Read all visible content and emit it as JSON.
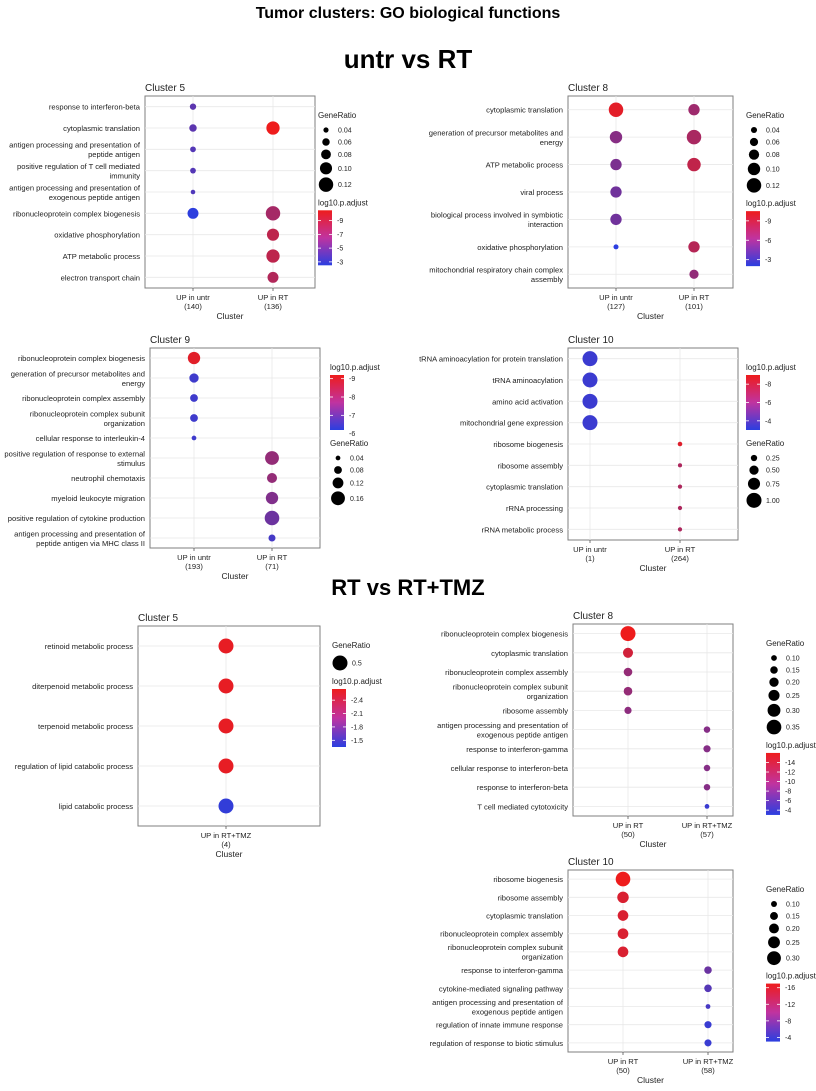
{
  "page_title": "Tumor clusters: GO biological functions",
  "sections": [
    {
      "title": "untr vs RT"
    },
    {
      "title": "RT vs RT+TMZ"
    }
  ],
  "chart_data": [
    {
      "type": "scatter",
      "title": "Cluster 5",
      "xlabel": "Cluster",
      "categories": [
        {
          "name": "UP in untr",
          "count": "(140)"
        },
        {
          "name": "UP in RT",
          "count": "(136)"
        }
      ],
      "terms": [
        "response to interferon-beta",
        "cytoplasmic translation",
        "antigen processing and presentation of peptide antigen",
        "positive regulation of T cell mediated immunity",
        "antigen processing and presentation of exogenous peptide antigen",
        "ribonucleoprotein complex biogenesis",
        "oxidative phosphorylation",
        "ATP metabolic process",
        "electron transport chain"
      ],
      "points": [
        {
          "term": 0,
          "cat": 0,
          "gene_ratio": 0.05,
          "log10_p_adjust": -4.5
        },
        {
          "term": 1,
          "cat": 0,
          "gene_ratio": 0.06,
          "log10_p_adjust": -4.5
        },
        {
          "term": 2,
          "cat": 0,
          "gene_ratio": 0.045,
          "log10_p_adjust": -4.2
        },
        {
          "term": 3,
          "cat": 0,
          "gene_ratio": 0.045,
          "log10_p_adjust": -4.2
        },
        {
          "term": 4,
          "cat": 0,
          "gene_ratio": 0.035,
          "log10_p_adjust": -4.0
        },
        {
          "term": 5,
          "cat": 0,
          "gene_ratio": 0.09,
          "log10_p_adjust": -2.6
        },
        {
          "term": 1,
          "cat": 1,
          "gene_ratio": 0.11,
          "log10_p_adjust": -10.5
        },
        {
          "term": 5,
          "cat": 1,
          "gene_ratio": 0.12,
          "log10_p_adjust": -7.5
        },
        {
          "term": 6,
          "cat": 1,
          "gene_ratio": 0.1,
          "log10_p_adjust": -8.5
        },
        {
          "term": 7,
          "cat": 1,
          "gene_ratio": 0.11,
          "log10_p_adjust": -8.5
        },
        {
          "term": 8,
          "cat": 1,
          "gene_ratio": 0.09,
          "log10_p_adjust": -8.0
        }
      ],
      "size_legend": {
        "title": "GeneRatio",
        "values": [
          0.04,
          0.06,
          0.08,
          0.1,
          0.12
        ],
        "labels": [
          "0.04",
          "0.06",
          "0.08",
          "0.10",
          "0.12"
        ]
      },
      "color_legend": {
        "title": "log10.p.adjust",
        "range": [
          -10.5,
          -2.5
        ],
        "ticks": [
          -9,
          -7,
          -5,
          -3
        ],
        "labels": [
          "-9",
          "-7",
          "-5",
          "-3"
        ]
      },
      "size_range": [
        0.03,
        0.125
      ]
    },
    {
      "type": "scatter",
      "title": "Cluster 8",
      "xlabel": "Cluster",
      "categories": [
        {
          "name": "UP in untr",
          "count": "(127)"
        },
        {
          "name": "UP in RT",
          "count": "(101)"
        }
      ],
      "terms": [
        "cytoplasmic translation",
        "generation of precursor metabolites and energy",
        "ATP metabolic process",
        "viral process",
        "biological process involved in symbiotic interaction",
        "oxidative phosphorylation",
        "mitochondrial respiratory chain complex assembly"
      ],
      "points": [
        {
          "term": 0,
          "cat": 0,
          "gene_ratio": 0.12,
          "log10_p_adjust": -10.0
        },
        {
          "term": 1,
          "cat": 0,
          "gene_ratio": 0.1,
          "log10_p_adjust": -6.0
        },
        {
          "term": 2,
          "cat": 0,
          "gene_ratio": 0.09,
          "log10_p_adjust": -5.5
        },
        {
          "term": 3,
          "cat": 0,
          "gene_ratio": 0.09,
          "log10_p_adjust": -5.0
        },
        {
          "term": 4,
          "cat": 0,
          "gene_ratio": 0.09,
          "log10_p_adjust": -5.0
        },
        {
          "term": 5,
          "cat": 0,
          "gene_ratio": 0.03,
          "log10_p_adjust": -2.0
        },
        {
          "term": 0,
          "cat": 1,
          "gene_ratio": 0.09,
          "log10_p_adjust": -7.0
        },
        {
          "term": 1,
          "cat": 1,
          "gene_ratio": 0.12,
          "log10_p_adjust": -7.5
        },
        {
          "term": 2,
          "cat": 1,
          "gene_ratio": 0.11,
          "log10_p_adjust": -8.5
        },
        {
          "term": 5,
          "cat": 1,
          "gene_ratio": 0.09,
          "log10_p_adjust": -8.0
        },
        {
          "term": 6,
          "cat": 1,
          "gene_ratio": 0.07,
          "log10_p_adjust": -6.5
        }
      ],
      "size_legend": {
        "title": "GeneRatio",
        "values": [
          0.04,
          0.06,
          0.08,
          0.1,
          0.12
        ],
        "labels": [
          "0.04",
          "0.06",
          "0.08",
          "0.10",
          "0.12"
        ]
      },
      "color_legend": {
        "title": "log10.p.adjust",
        "range": [
          -10.5,
          -2.0
        ],
        "ticks": [
          -9,
          -6,
          -3
        ],
        "labels": [
          "-9",
          "-6",
          "-3"
        ]
      },
      "size_range": [
        0.02,
        0.125
      ]
    },
    {
      "type": "scatter",
      "title": "Cluster 9",
      "xlabel": "Cluster",
      "categories": [
        {
          "name": "UP in untr",
          "count": "(193)"
        },
        {
          "name": "UP in RT",
          "count": "(71)"
        }
      ],
      "terms": [
        "ribonucleoprotein complex biogenesis",
        "generation of precursor metabolites and energy",
        "ribonucleoprotein complex assembly",
        "ribonucleoprotein complex subunit organization",
        "cellular response to interleukin-4",
        "positive regulation of response to external stimulus",
        "neutrophil chemotaxis",
        "myeloid leukocyte migration",
        "positive regulation of cytokine production",
        "antigen processing and presentation of peptide antigen via MHC class II"
      ],
      "points": [
        {
          "term": 0,
          "cat": 0,
          "gene_ratio": 0.14,
          "log10_p_adjust": -9.0
        },
        {
          "term": 1,
          "cat": 0,
          "gene_ratio": 0.1,
          "log10_p_adjust": -6.5
        },
        {
          "term": 2,
          "cat": 0,
          "gene_ratio": 0.08,
          "log10_p_adjust": -6.5
        },
        {
          "term": 3,
          "cat": 0,
          "gene_ratio": 0.08,
          "log10_p_adjust": -6.5
        },
        {
          "term": 4,
          "cat": 0,
          "gene_ratio": 0.04,
          "log10_p_adjust": -6.5
        },
        {
          "term": 5,
          "cat": 1,
          "gene_ratio": 0.16,
          "log10_p_adjust": -7.8
        },
        {
          "term": 6,
          "cat": 1,
          "gene_ratio": 0.11,
          "log10_p_adjust": -7.8
        },
        {
          "term": 7,
          "cat": 1,
          "gene_ratio": 0.14,
          "log10_p_adjust": -7.5
        },
        {
          "term": 8,
          "cat": 1,
          "gene_ratio": 0.17,
          "log10_p_adjust": -7.2
        },
        {
          "term": 9,
          "cat": 1,
          "gene_ratio": 0.07,
          "log10_p_adjust": -6.6
        }
      ],
      "size_legend": {
        "title": "GeneRatio",
        "values": [
          0.04,
          0.08,
          0.12,
          0.16
        ],
        "labels": [
          "0.04",
          "0.08",
          "0.12",
          "0.16"
        ]
      },
      "color_legend": {
        "title": "log10.p.adjust",
        "range": [
          -9.2,
          -6.2
        ],
        "ticks": [
          -9,
          -8,
          -7,
          -6
        ],
        "labels": [
          "-9",
          "-8",
          "-7",
          "-6"
        ]
      },
      "size_range": [
        0.03,
        0.175
      ]
    },
    {
      "type": "scatter",
      "title": "Cluster 10",
      "xlabel": "Cluster",
      "categories": [
        {
          "name": "UP in untr",
          "count": "(1)"
        },
        {
          "name": "UP in RT",
          "count": "(264)"
        }
      ],
      "terms": [
        "tRNA aminoacylation for protein translation",
        "tRNA aminoacylation",
        "amino acid activation",
        "mitochondrial gene expression",
        "ribosome biogenesis",
        "ribosome assembly",
        "cytoplasmic translation",
        "rRNA processing",
        "rRNA metabolic process"
      ],
      "points": [
        {
          "term": 0,
          "cat": 0,
          "gene_ratio": 1.0,
          "log10_p_adjust": -3.5
        },
        {
          "term": 1,
          "cat": 0,
          "gene_ratio": 1.0,
          "log10_p_adjust": -3.5
        },
        {
          "term": 2,
          "cat": 0,
          "gene_ratio": 1.0,
          "log10_p_adjust": -3.5
        },
        {
          "term": 3,
          "cat": 0,
          "gene_ratio": 1.0,
          "log10_p_adjust": -3.5
        },
        {
          "term": 4,
          "cat": 1,
          "gene_ratio": 0.1,
          "log10_p_adjust": -8.5
        },
        {
          "term": 5,
          "cat": 1,
          "gene_ratio": 0.06,
          "log10_p_adjust": -7.0
        },
        {
          "term": 6,
          "cat": 1,
          "gene_ratio": 0.07,
          "log10_p_adjust": -7.0
        },
        {
          "term": 7,
          "cat": 1,
          "gene_ratio": 0.07,
          "log10_p_adjust": -7.0
        },
        {
          "term": 8,
          "cat": 1,
          "gene_ratio": 0.07,
          "log10_p_adjust": -7.0
        }
      ],
      "size_legend": {
        "title": "GeneRatio",
        "values": [
          0.25,
          0.5,
          0.75,
          1.0
        ],
        "labels": [
          "0.25",
          "0.50",
          "0.75",
          "1.00"
        ]
      },
      "color_legend": {
        "title": "log10.p.adjust",
        "range": [
          -9.0,
          -3.0
        ],
        "ticks": [
          -8,
          -6,
          -4
        ],
        "labels": [
          "-8",
          "-6",
          "-4"
        ]
      },
      "size_range": [
        0.05,
        1.0
      ]
    },
    {
      "type": "scatter",
      "title": "Cluster 5",
      "xlabel": "Cluster",
      "categories": [
        {
          "name": "UP in RT+TMZ",
          "count": "(4)"
        }
      ],
      "terms": [
        "retinoid metabolic process",
        "diterpenoid metabolic process",
        "terpenoid metabolic process",
        "regulation of lipid catabolic process",
        "lipid catabolic process"
      ],
      "points": [
        {
          "term": 0,
          "cat": 0,
          "gene_ratio": 0.5,
          "log10_p_adjust": -2.6
        },
        {
          "term": 1,
          "cat": 0,
          "gene_ratio": 0.5,
          "log10_p_adjust": -2.6
        },
        {
          "term": 2,
          "cat": 0,
          "gene_ratio": 0.5,
          "log10_p_adjust": -2.6
        },
        {
          "term": 3,
          "cat": 0,
          "gene_ratio": 0.5,
          "log10_p_adjust": -2.6
        },
        {
          "term": 4,
          "cat": 0,
          "gene_ratio": 0.5,
          "log10_p_adjust": -1.4
        }
      ],
      "size_legend": {
        "title": "GeneRatio",
        "values": [
          0.5
        ],
        "labels": [
          "0.5"
        ]
      },
      "color_legend": {
        "title": "log10.p.adjust",
        "range": [
          -2.65,
          -1.35
        ],
        "ticks": [
          -2.4,
          -2.1,
          -1.8,
          -1.5
        ],
        "labels": [
          "-2.4",
          "-2.1",
          "-1.8",
          "-1.5"
        ]
      },
      "size_range": [
        0,
        0.5
      ]
    },
    {
      "type": "scatter",
      "title": "Cluster 8",
      "xlabel": "Cluster",
      "categories": [
        {
          "name": "UP in RT",
          "count": "(50)"
        },
        {
          "name": "UP in RT+TMZ",
          "count": "(57)"
        }
      ],
      "terms": [
        "ribonucleoprotein complex biogenesis",
        "cytoplasmic translation",
        "ribonucleoprotein complex assembly",
        "ribonucleoprotein complex subunit organization",
        "ribosome assembly",
        "antigen processing and presentation of exogenous peptide antigen",
        "response to interferon-gamma",
        "cellular response to interferon-beta",
        "response to interferon-beta",
        "T cell mediated cytotoxicity"
      ],
      "points": [
        {
          "term": 0,
          "cat": 0,
          "gene_ratio": 0.36,
          "log10_p_adjust": -16.0
        },
        {
          "term": 1,
          "cat": 0,
          "gene_ratio": 0.22,
          "log10_p_adjust": -14.0
        },
        {
          "term": 2,
          "cat": 0,
          "gene_ratio": 0.18,
          "log10_p_adjust": -10.0
        },
        {
          "term": 3,
          "cat": 0,
          "gene_ratio": 0.18,
          "log10_p_adjust": -10.0
        },
        {
          "term": 4,
          "cat": 0,
          "gene_ratio": 0.14,
          "log10_p_adjust": -9.5
        },
        {
          "term": 5,
          "cat": 1,
          "gene_ratio": 0.12,
          "log10_p_adjust": -9.0
        },
        {
          "term": 6,
          "cat": 1,
          "gene_ratio": 0.14,
          "log10_p_adjust": -9.0
        },
        {
          "term": 7,
          "cat": 1,
          "gene_ratio": 0.12,
          "log10_p_adjust": -9.0
        },
        {
          "term": 8,
          "cat": 1,
          "gene_ratio": 0.12,
          "log10_p_adjust": -9.0
        },
        {
          "term": 9,
          "cat": 1,
          "gene_ratio": 0.07,
          "log10_p_adjust": -4.0
        }
      ],
      "size_legend": {
        "title": "GeneRatio",
        "values": [
          0.1,
          0.15,
          0.2,
          0.25,
          0.3,
          0.35
        ],
        "labels": [
          "0.10",
          "0.15",
          "0.20",
          "0.25",
          "0.30",
          "0.35"
        ]
      },
      "color_legend": {
        "title": "log10.p.adjust",
        "range": [
          -16.0,
          -3.0
        ],
        "ticks": [
          -14,
          -12,
          -10,
          -8,
          -6,
          -4
        ],
        "labels": [
          "-14",
          "-12",
          "-10",
          "-8",
          "-6",
          "-4"
        ]
      },
      "size_range": [
        0.05,
        0.36
      ]
    },
    {
      "type": "scatter",
      "title": "Cluster 10",
      "xlabel": "Cluster",
      "categories": [
        {
          "name": "UP in RT",
          "count": "(50)"
        },
        {
          "name": "UP in RT+TMZ",
          "count": "(58)"
        }
      ],
      "terms": [
        "ribosome biogenesis",
        "ribosome assembly",
        "cytoplasmic translation",
        "ribonucleoprotein complex assembly",
        "ribonucleoprotein complex subunit organization",
        "response to interferon-gamma",
        "cytokine-mediated signaling pathway",
        "antigen processing and presentation of exogenous peptide antigen",
        "regulation of innate immune response",
        "regulation of response to biotic stimulus"
      ],
      "points": [
        {
          "term": 0,
          "cat": 0,
          "gene_ratio": 0.32,
          "log10_p_adjust": -17.0
        },
        {
          "term": 1,
          "cat": 0,
          "gene_ratio": 0.24,
          "log10_p_adjust": -15.5
        },
        {
          "term": 2,
          "cat": 0,
          "gene_ratio": 0.22,
          "log10_p_adjust": -15.5
        },
        {
          "term": 3,
          "cat": 0,
          "gene_ratio": 0.22,
          "log10_p_adjust": -15.5
        },
        {
          "term": 4,
          "cat": 0,
          "gene_ratio": 0.22,
          "log10_p_adjust": -15.5
        },
        {
          "term": 5,
          "cat": 1,
          "gene_ratio": 0.14,
          "log10_p_adjust": -7.5
        },
        {
          "term": 6,
          "cat": 1,
          "gene_ratio": 0.14,
          "log10_p_adjust": -6.0
        },
        {
          "term": 7,
          "cat": 1,
          "gene_ratio": 0.07,
          "log10_p_adjust": -5.0
        },
        {
          "term": 8,
          "cat": 1,
          "gene_ratio": 0.13,
          "log10_p_adjust": -4.0
        },
        {
          "term": 9,
          "cat": 1,
          "gene_ratio": 0.13,
          "log10_p_adjust": -4.0
        }
      ],
      "size_legend": {
        "title": "GeneRatio",
        "values": [
          0.1,
          0.15,
          0.2,
          0.25,
          0.3
        ],
        "labels": [
          "0.10",
          "0.15",
          "0.20",
          "0.25",
          "0.30"
        ]
      },
      "color_legend": {
        "title": "log10.p.adjust",
        "range": [
          -17.0,
          -3.0
        ],
        "ticks": [
          -16,
          -12,
          -8,
          -4
        ],
        "labels": [
          "-16",
          "-12",
          "-8",
          "-4"
        ]
      },
      "size_range": [
        0.05,
        0.33
      ]
    }
  ],
  "colors": {
    "low": "#ee1c1c",
    "high": "#2b3ee0",
    "grid": "#e8e8e8",
    "panel_border": "#7f7f7f"
  }
}
